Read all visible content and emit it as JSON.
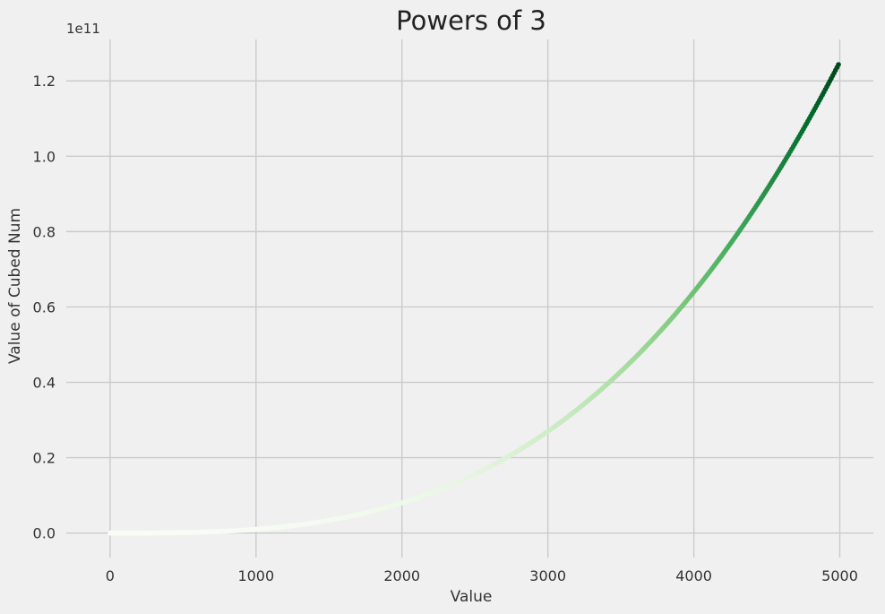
{
  "chart_data": {
    "type": "scatter",
    "title": "Powers of 3",
    "xlabel": "Value",
    "ylabel": "Value of Cubed Num",
    "y_offset_text": "1e11",
    "xlim": [
      -300,
      5230
    ],
    "ylim": [
      -0.065,
      1.31
    ],
    "y_unit_scale": 100000000000.0,
    "x_ticks": [
      0,
      1000,
      2000,
      3000,
      4000,
      5000
    ],
    "x_tick_labels": [
      "0",
      "1000",
      "2000",
      "3000",
      "4000",
      "5000"
    ],
    "y_ticks": [
      0.0,
      0.2,
      0.4,
      0.6,
      0.8,
      1.0,
      1.2
    ],
    "y_tick_labels": [
      "0.0",
      "0.2",
      "0.4",
      "0.6",
      "0.8",
      "1.0",
      "1.2"
    ],
    "grid": true,
    "series": [
      {
        "function": "y = x^3",
        "x_range": [
          1,
          5000
        ],
        "colormap": "Greens",
        "colormap_colors": [
          "#f7fcf5",
          "#e5f5e0",
          "#c7e9c0",
          "#a1d99b",
          "#74c476",
          "#41ab5d",
          "#238b45",
          "#006d2c",
          "#00441b"
        ]
      }
    ]
  }
}
